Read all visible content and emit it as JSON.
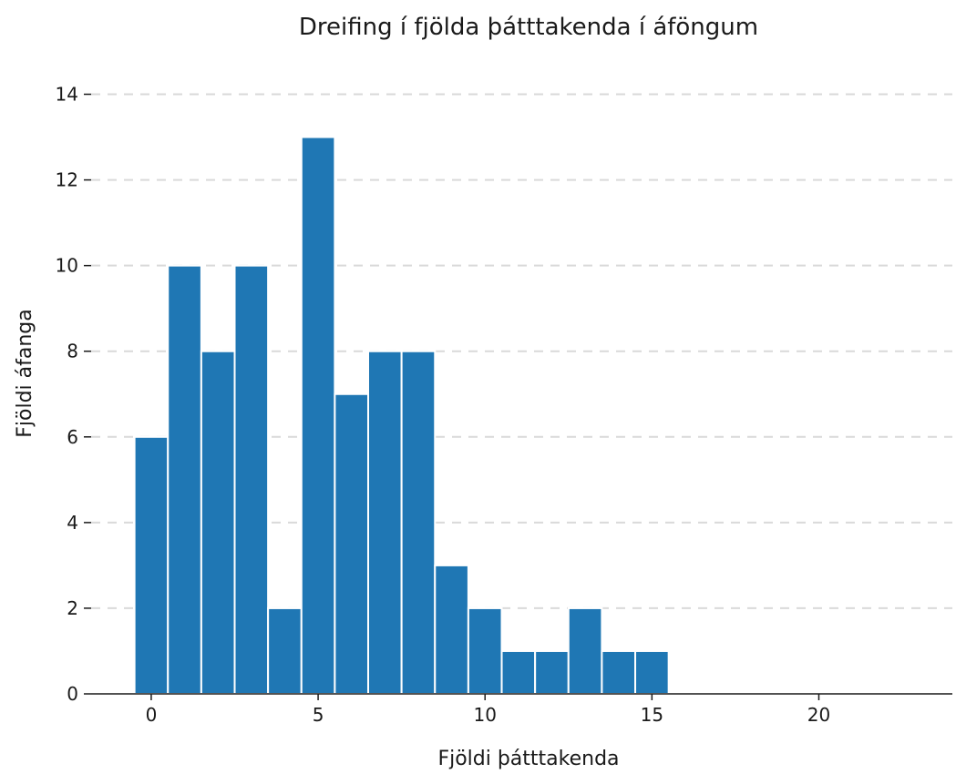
{
  "chart_data": {
    "type": "bar",
    "title": "Dreifing í fjölda þátttakenda í áföngum",
    "xlabel": "Fjöldi þátttakenda",
    "ylabel": "Fjöldi áfanga",
    "x": [
      0,
      1,
      2,
      3,
      4,
      5,
      6,
      7,
      8,
      9,
      10,
      11,
      12,
      13,
      14,
      15
    ],
    "values": [
      6,
      10,
      8,
      10,
      2,
      13,
      7,
      8,
      8,
      3,
      2,
      1,
      1,
      2,
      1,
      1
    ],
    "bar_width": 1,
    "xlim": [
      -1.8,
      24
    ],
    "ylim": [
      0,
      14.5
    ],
    "xticks": [
      0,
      5,
      10,
      15,
      20
    ],
    "yticks": [
      0,
      2,
      4,
      6,
      8,
      10,
      12,
      14
    ],
    "grid": "horizontal-dashed",
    "color": "#1f77b4"
  }
}
